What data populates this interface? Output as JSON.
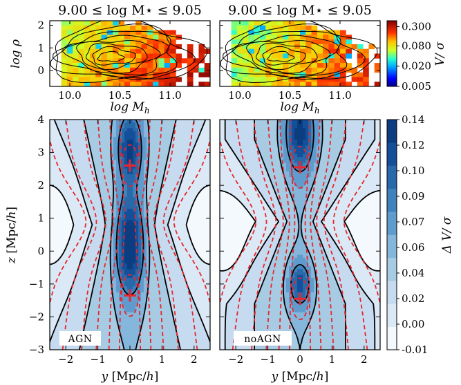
{
  "titles": {
    "left": "9.00 ≤ log M⋆ ≤ 9.05",
    "right": "9.00 ≤ log M⋆ ≤ 9.05"
  },
  "panel_labels": {
    "agn": "AGN",
    "noagn": "noAGN"
  },
  "colors": {
    "contour_line": "#000000",
    "red_dashed": "#e8262b",
    "marker": "#e8262b",
    "blues_ramp": [
      "#f4f9fd",
      "#dbe9f6",
      "#c6dbef",
      "#a8cbe4",
      "#85b6dc",
      "#5f9ccd",
      "#3f82bd",
      "#2869aa",
      "#14509a",
      "#0b3d80"
    ]
  },
  "chart_data": [
    {
      "type": "heatmap",
      "panel": "top-left",
      "title": "9.00 ≤ log M⋆ ≤ 9.05",
      "xlabel": "log M_h",
      "ylabel": "log ρ",
      "xlim": [
        9.8,
        11.4
      ],
      "ylim": [
        -0.7,
        2.2
      ],
      "xticks": [
        "10.0",
        "10.5",
        "11.0"
      ],
      "yticks": [
        "0",
        "1",
        "2"
      ],
      "overlay": "black density contours"
    },
    {
      "type": "heatmap",
      "panel": "top-right",
      "title": "9.00 ≤ log M⋆ ≤ 9.05",
      "xlabel": "log M_h",
      "ylabel": "",
      "xlim": [
        9.8,
        11.4
      ],
      "ylim": [
        -0.7,
        2.2
      ],
      "xticks": [
        "10.0",
        "10.5",
        "11.0"
      ],
      "yticks": [],
      "overlay": "black density contours",
      "colorbar": {
        "label": "V/σ",
        "scale": "log",
        "ticks": [
          "0.300",
          "0.080",
          "0.020",
          "0.005"
        ],
        "range": [
          0.005,
          0.45
        ]
      }
    },
    {
      "type": "heatmap",
      "panel": "bottom-left",
      "label": "AGN",
      "xlabel": "y [Mpc/h]",
      "ylabel": "z [Mpc/h]",
      "xlim": [
        -2.5,
        2.5
      ],
      "ylim": [
        -3,
        4
      ],
      "xticks": [
        "−2",
        "−1",
        "0",
        "1",
        "2"
      ],
      "yticks": [
        "−3",
        "−2",
        "−1",
        "0",
        "1",
        "2",
        "3",
        "4"
      ],
      "markers": [
        {
          "x": 0,
          "y": 2.6
        },
        {
          "x": 0,
          "y": -1.35
        }
      ],
      "overlay": "filled ΔV/σ contours with black lines, red dashed contours"
    },
    {
      "type": "heatmap",
      "panel": "bottom-right",
      "label": "noAGN",
      "xlabel": "y [Mpc/h]",
      "ylabel": "",
      "xlim": [
        -2.5,
        2.5
      ],
      "ylim": [
        -3,
        4
      ],
      "xticks": [
        "−2",
        "−1",
        "0",
        "1",
        "2"
      ],
      "yticks": [],
      "markers": [
        {
          "x": 0,
          "y": 2.55
        },
        {
          "x": 0,
          "y": -1.45
        }
      ],
      "overlay": "filled ΔV/σ contours with black lines, red dashed contours",
      "colorbar": {
        "label": "Δ V/σ",
        "ticks": [
          "0.14",
          "0.12",
          "0.10",
          "0.09",
          "0.07",
          "0.06",
          "0.04",
          "0.02",
          "0.00",
          "-0.01"
        ],
        "range": [
          -0.01,
          0.14
        ]
      }
    }
  ]
}
